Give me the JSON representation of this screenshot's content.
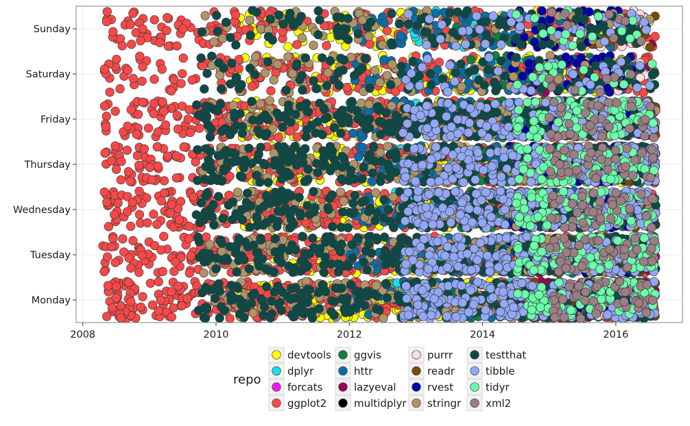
{
  "chart_data": {
    "type": "scatter",
    "title": "",
    "xlabel": "",
    "ylabel": "",
    "xlim": [
      2007.9,
      2017.0
    ],
    "x_ticks": [
      2008,
      2010,
      2012,
      2014,
      2016
    ],
    "x_tick_labels": [
      "2008",
      "2010",
      "2012",
      "2014",
      "2016"
    ],
    "categories": [
      "Monday",
      "Tuesday",
      "Wednesday",
      "Thursday",
      "Friday",
      "Saturday",
      "Sunday"
    ],
    "grid": true,
    "legend_title": "repo",
    "legend_position": "bottom",
    "series": [
      {
        "name": "devtools",
        "color": "#FFFF00",
        "start": 2010.3,
        "end": 2016.1,
        "density": [
          2.0,
          1.5,
          1.5,
          1.5,
          1.5,
          1.0,
          1.0
        ]
      },
      {
        "name": "dplyr",
        "color": "#1ADFF0",
        "start": 2012.6,
        "end": 2016.6,
        "density": [
          1.0,
          1.0,
          0.8,
          1.0,
          0.8,
          0.4,
          0.3
        ]
      },
      {
        "name": "forcats",
        "color": "#F01AF0",
        "start": 2016.3,
        "end": 2016.6,
        "density": [
          1.5,
          1.5,
          0.3,
          0.5,
          0.3,
          0.0,
          0.0
        ]
      },
      {
        "name": "ggplot2",
        "color": "#F84848",
        "start": 2008.3,
        "end": 2016.6,
        "density": [
          3.0,
          2.5,
          2.2,
          2.2,
          2.5,
          1.5,
          1.5
        ]
      },
      {
        "name": "ggvis",
        "color": "#0E8040",
        "start": 2013.5,
        "end": 2016.6,
        "density": [
          1.2,
          1.5,
          1.5,
          1.5,
          1.2,
          0.3,
          0.3
        ]
      },
      {
        "name": "httr",
        "color": "#0A6EA6",
        "start": 2012.0,
        "end": 2016.3,
        "density": [
          1.5,
          1.5,
          1.5,
          1.5,
          1.5,
          1.0,
          1.0
        ]
      },
      {
        "name": "lazyeval",
        "color": "#A0005A",
        "start": 2014.5,
        "end": 2016.6,
        "density": [
          0.8,
          0.8,
          0.5,
          0.5,
          0.5,
          0.1,
          0.1
        ]
      },
      {
        "name": "multidplyr",
        "color": "#000000",
        "start": 2016.0,
        "end": 2016.2,
        "density": [
          0.3,
          0.3,
          0.2,
          0.2,
          0.2,
          0.1,
          0.2
        ]
      },
      {
        "name": "purrr",
        "color": "#FBDDE5",
        "start": 2015.5,
        "end": 2016.6,
        "density": [
          1.0,
          1.0,
          0.8,
          0.8,
          0.8,
          0.8,
          0.6
        ]
      },
      {
        "name": "readr",
        "color": "#7A4A00",
        "start": 2014.7,
        "end": 2016.6,
        "density": [
          1.5,
          1.5,
          1.5,
          1.5,
          1.5,
          0.3,
          0.6
        ]
      },
      {
        "name": "rvest",
        "color": "#0000A8",
        "start": 2014.4,
        "end": 2016.3,
        "density": [
          1.0,
          1.5,
          1.5,
          1.5,
          1.5,
          1.5,
          1.2
        ]
      },
      {
        "name": "stringr",
        "color": "#B09468",
        "start": 2009.8,
        "end": 2016.6,
        "density": [
          1.2,
          1.2,
          1.0,
          1.0,
          1.0,
          0.5,
          0.5
        ]
      },
      {
        "name": "testthat",
        "color": "#0B4A46",
        "start": 2009.7,
        "end": 2016.6,
        "density": [
          2.0,
          2.0,
          2.0,
          2.0,
          2.0,
          0.8,
          0.8
        ]
      },
      {
        "name": "tibble",
        "color": "#92A8F5",
        "start": 2012.8,
        "end": 2016.6,
        "density": [
          3.0,
          3.0,
          3.0,
          3.0,
          2.0,
          0.5,
          0.5
        ]
      },
      {
        "name": "tidyr",
        "color": "#6AFFAA",
        "start": 2014.5,
        "end": 2016.6,
        "density": [
          2.0,
          2.0,
          2.0,
          2.0,
          2.0,
          0.4,
          0.4
        ]
      },
      {
        "name": "xml2",
        "color": "#9C7E84",
        "start": 2015.0,
        "end": 2016.6,
        "density": [
          1.5,
          1.5,
          1.5,
          1.5,
          1.2,
          0.2,
          0.2
        ]
      }
    ]
  }
}
